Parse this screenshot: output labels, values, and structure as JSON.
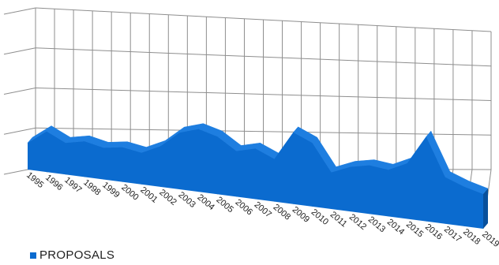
{
  "chart_data": {
    "type": "area",
    "style": "3d-perspective",
    "x": [
      "1995",
      "1996",
      "1997",
      "1998",
      "1999",
      "2000",
      "2001",
      "2002",
      "2003",
      "2004",
      "2005",
      "2006",
      "2007",
      "2008",
      "2009",
      "2010",
      "2011",
      "2012",
      "2013",
      "2014",
      "2015",
      "2016",
      "2017",
      "2018",
      "2019"
    ],
    "series": [
      {
        "name": "PROPOSALS",
        "values": [
          3,
          17,
          8,
          12,
          8,
          11,
          8,
          17,
          33,
          39,
          34,
          22,
          27,
          19,
          48,
          40,
          13,
          21,
          25,
          23,
          32,
          61,
          23,
          16,
          11
        ]
      }
    ],
    "ylim": [
      0,
      160
    ],
    "grid": true,
    "legend_position": "bottom-left",
    "title": "",
    "xlabel": "",
    "ylabel": ""
  },
  "colors": {
    "front": "#0b6bcf",
    "top": "#1e7ee0",
    "side": "#08509c",
    "grid": "#8e8e8e"
  },
  "legend": {
    "label": "PROPOSALS"
  }
}
